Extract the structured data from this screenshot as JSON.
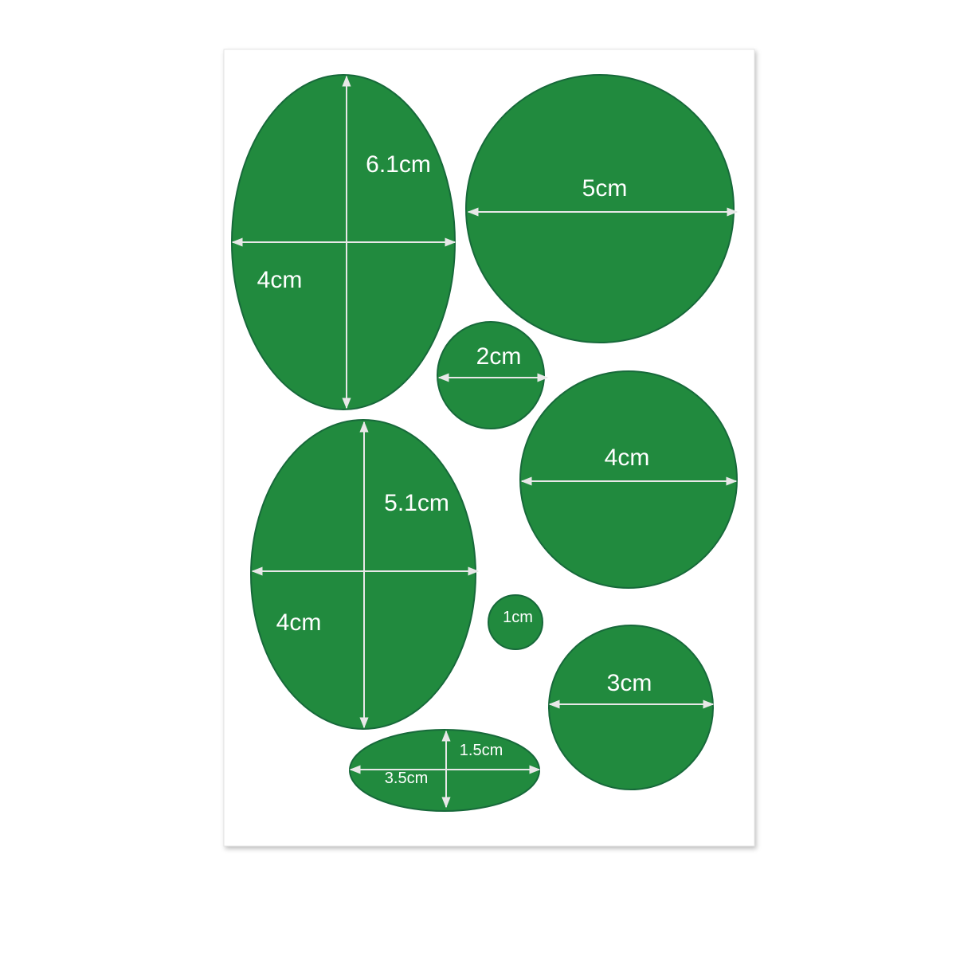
{
  "colors": {
    "patch": "#218a3e",
    "patch_edge": "#17693a",
    "sheet": "#ffffff",
    "arrow": "#e8e8e8"
  },
  "patches": [
    {
      "shape": "oval",
      "labels": [
        "6.1cm",
        "4cm"
      ]
    },
    {
      "shape": "circle",
      "labels": [
        "5cm"
      ]
    },
    {
      "shape": "circle",
      "labels": [
        "2cm"
      ]
    },
    {
      "shape": "circle",
      "labels": [
        "4cm"
      ]
    },
    {
      "shape": "oval",
      "labels": [
        "5.1cm",
        "4cm"
      ]
    },
    {
      "shape": "circle",
      "labels": [
        "1cm"
      ]
    },
    {
      "shape": "circle",
      "labels": [
        "3cm"
      ]
    },
    {
      "shape": "oval",
      "labels": [
        "1.5cm",
        "3.5cm"
      ]
    }
  ]
}
